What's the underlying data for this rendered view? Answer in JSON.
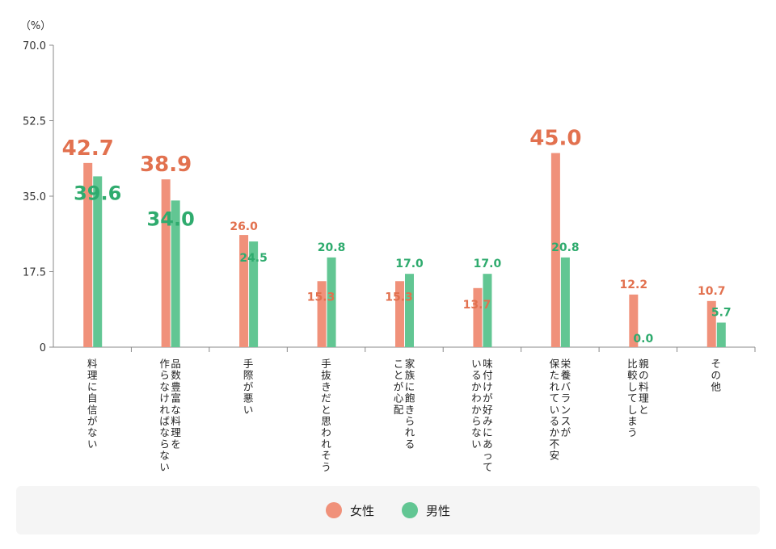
{
  "chart_data": {
    "type": "bar",
    "unit_label": "（%）",
    "ylim": [
      0,
      70
    ],
    "yticks": [
      "0",
      "17.5",
      "35.0",
      "52.5",
      "70.0"
    ],
    "ytick_values": [
      0,
      17.5,
      35,
      52.5,
      70
    ],
    "categories": [
      [
        "料理に自信がない"
      ],
      [
        "品数豊富な料理を",
        "作らなければならない"
      ],
      [
        "手際が悪い"
      ],
      [
        "手抜きだと思われそう"
      ],
      [
        "家族に飽きられる",
        "ことが心配"
      ],
      [
        "味付けが好みにあって",
        "いるかわからない"
      ],
      [
        "栄養バランスが",
        "保たれているか不安"
      ],
      [
        "親の料理と",
        "比較してしまう"
      ],
      [
        "その他"
      ]
    ],
    "series": [
      {
        "name": "女性",
        "color": "#f0917a",
        "label_color": "#e2714f",
        "values": [
          42.7,
          38.9,
          26.0,
          15.3,
          15.3,
          13.7,
          45.0,
          12.2,
          10.7
        ],
        "labels": [
          "42.7",
          "38.9",
          "26.0",
          "15.3",
          "15.3",
          "13.7",
          "45.0",
          "12.2",
          "10.7"
        ]
      },
      {
        "name": "男性",
        "color": "#62c693",
        "label_color": "#2fab6e",
        "values": [
          39.6,
          34.0,
          24.5,
          20.8,
          17.0,
          17.0,
          20.8,
          0.0,
          5.7
        ],
        "labels": [
          "39.6",
          "34.0",
          "24.5",
          "20.8",
          "17.0",
          "17.0",
          "20.8",
          "0.0",
          "5.7"
        ]
      }
    ],
    "grid": false,
    "legend_position": "bottom"
  },
  "legend": {
    "female_label": "女性",
    "male_label": "男性",
    "female_color": "#f0917a",
    "male_color": "#62c693"
  }
}
